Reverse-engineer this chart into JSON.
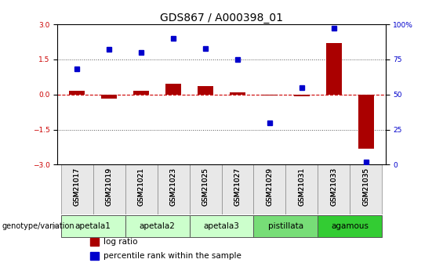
{
  "title": "GDS867 / A000398_01",
  "samples": [
    "GSM21017",
    "GSM21019",
    "GSM21021",
    "GSM21023",
    "GSM21025",
    "GSM21027",
    "GSM21029",
    "GSM21031",
    "GSM21033",
    "GSM21035"
  ],
  "log_ratio": [
    0.15,
    -0.18,
    0.15,
    0.45,
    0.35,
    0.1,
    -0.03,
    -0.08,
    2.2,
    -2.3
  ],
  "percentile_rank": [
    68,
    82,
    80,
    90,
    83,
    75,
    30,
    55,
    97,
    2
  ],
  "ylim_left": [
    -3,
    3
  ],
  "ylim_right": [
    0,
    100
  ],
  "yticks_left": [
    -3,
    -1.5,
    0,
    1.5,
    3
  ],
  "yticks_right": [
    0,
    25,
    50,
    75,
    100
  ],
  "ytick_right_labels": [
    "0",
    "25",
    "50",
    "75",
    "100%"
  ],
  "hlines": [
    1.5,
    -1.5
  ],
  "hline_zero_color": "#cc0000",
  "hline_dotted_color": "#555555",
  "bar_color": "#aa0000",
  "dot_color": "#0000cc",
  "dot_size": 4,
  "groups": [
    {
      "label": "apetala1",
      "start": 0,
      "end": 1,
      "color": "#ccffcc"
    },
    {
      "label": "apetala2",
      "start": 2,
      "end": 3,
      "color": "#ccffcc"
    },
    {
      "label": "apetala3",
      "start": 4,
      "end": 5,
      "color": "#ccffcc"
    },
    {
      "label": "pistillata",
      "start": 6,
      "end": 7,
      "color": "#77dd77"
    },
    {
      "label": "agamous",
      "start": 8,
      "end": 9,
      "color": "#33cc33"
    }
  ],
  "genotype_label": "genotype/variation",
  "legend_items": [
    {
      "label": "log ratio",
      "color": "#aa0000"
    },
    {
      "label": "percentile rank within the sample",
      "color": "#0000cc"
    }
  ],
  "title_fontsize": 10,
  "tick_fontsize": 6.5,
  "label_fontsize": 7.5,
  "group_label_fontsize": 7.5
}
